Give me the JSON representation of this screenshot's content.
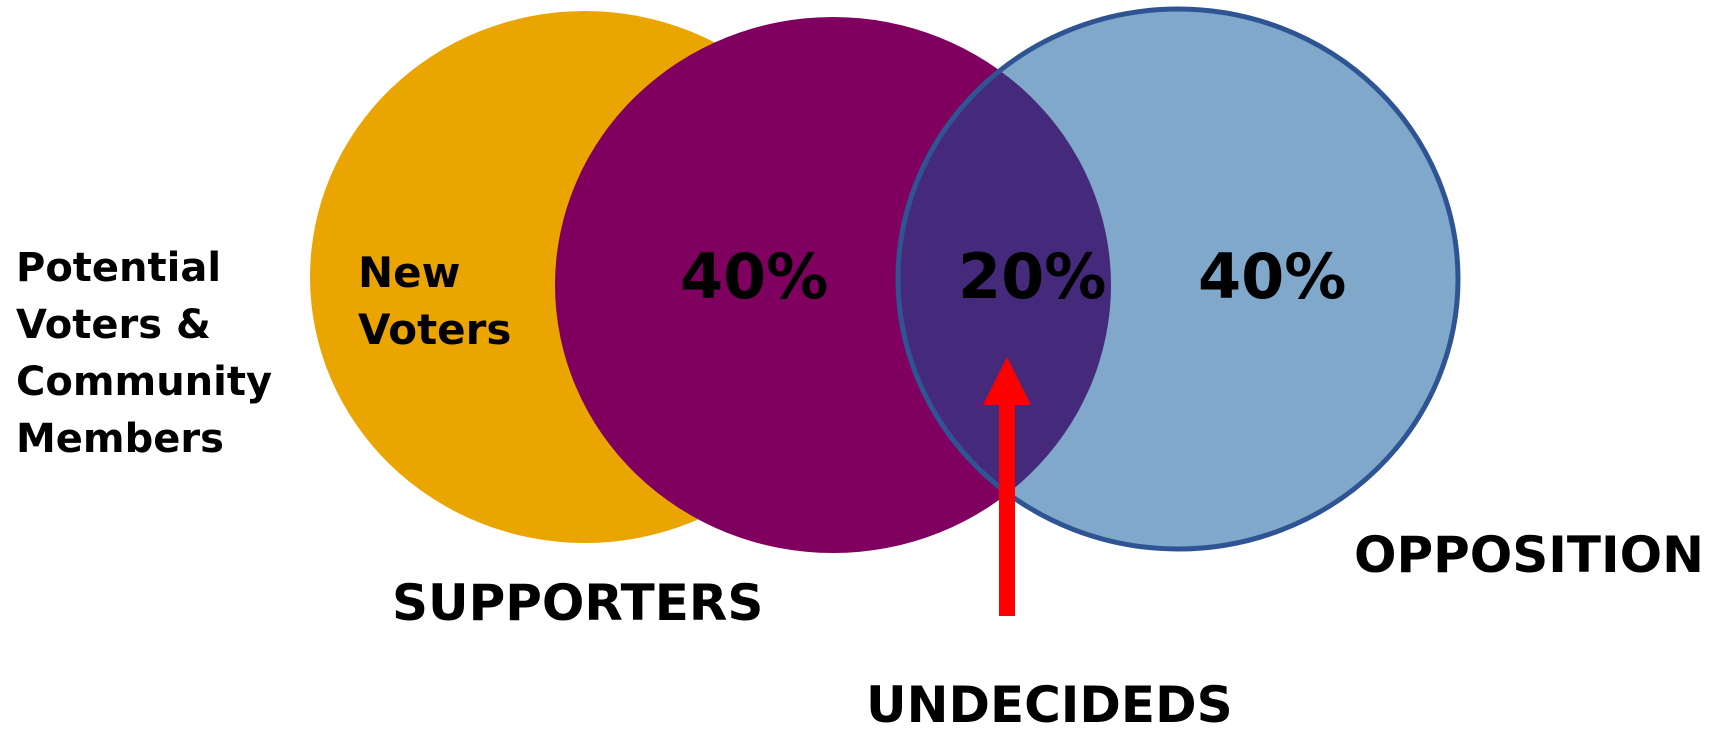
{
  "diagram": {
    "side_label": "Potential\nVoters &\nCommunity\nMembers",
    "new_voters_label": "New\nVoters",
    "supporters_pct": "40%",
    "undecided_pct": "20%",
    "opposition_pct": "40%",
    "supporters_label": "SUPPORTERS",
    "opposition_label": "OPPOSITION",
    "undecideds_label": "UNDECIDEDS"
  },
  "colors": {
    "new_voters_circle": "#EBA500",
    "supporters_circle": "#800060",
    "opposition_circle": "#7FA8CB",
    "opposition_outline": "#2F5493",
    "overlap": "#45297A",
    "arrow": "#FF0000"
  },
  "icons": {
    "arrow": "arrow-up-icon"
  }
}
